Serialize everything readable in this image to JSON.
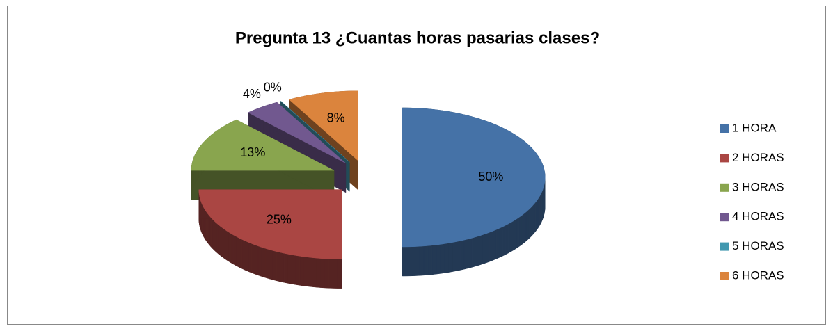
{
  "chart_data": {
    "type": "pie",
    "title": "Pregunta 13 ¿Cuantas horas pasarias clases?",
    "categories": [
      "1 HORA",
      "2 HORAS",
      "3 HORAS",
      "4 HORAS",
      "5 HORAS",
      "6 HORAS"
    ],
    "values": [
      50,
      25,
      13,
      4,
      0,
      8
    ],
    "value_labels": [
      "50%",
      "25%",
      "13%",
      "4%",
      "0%",
      "8%"
    ],
    "colors": [
      "#4572a7",
      "#aa4643",
      "#89a54e",
      "#71588f",
      "#4198af",
      "#db843d"
    ],
    "legend": "right"
  }
}
